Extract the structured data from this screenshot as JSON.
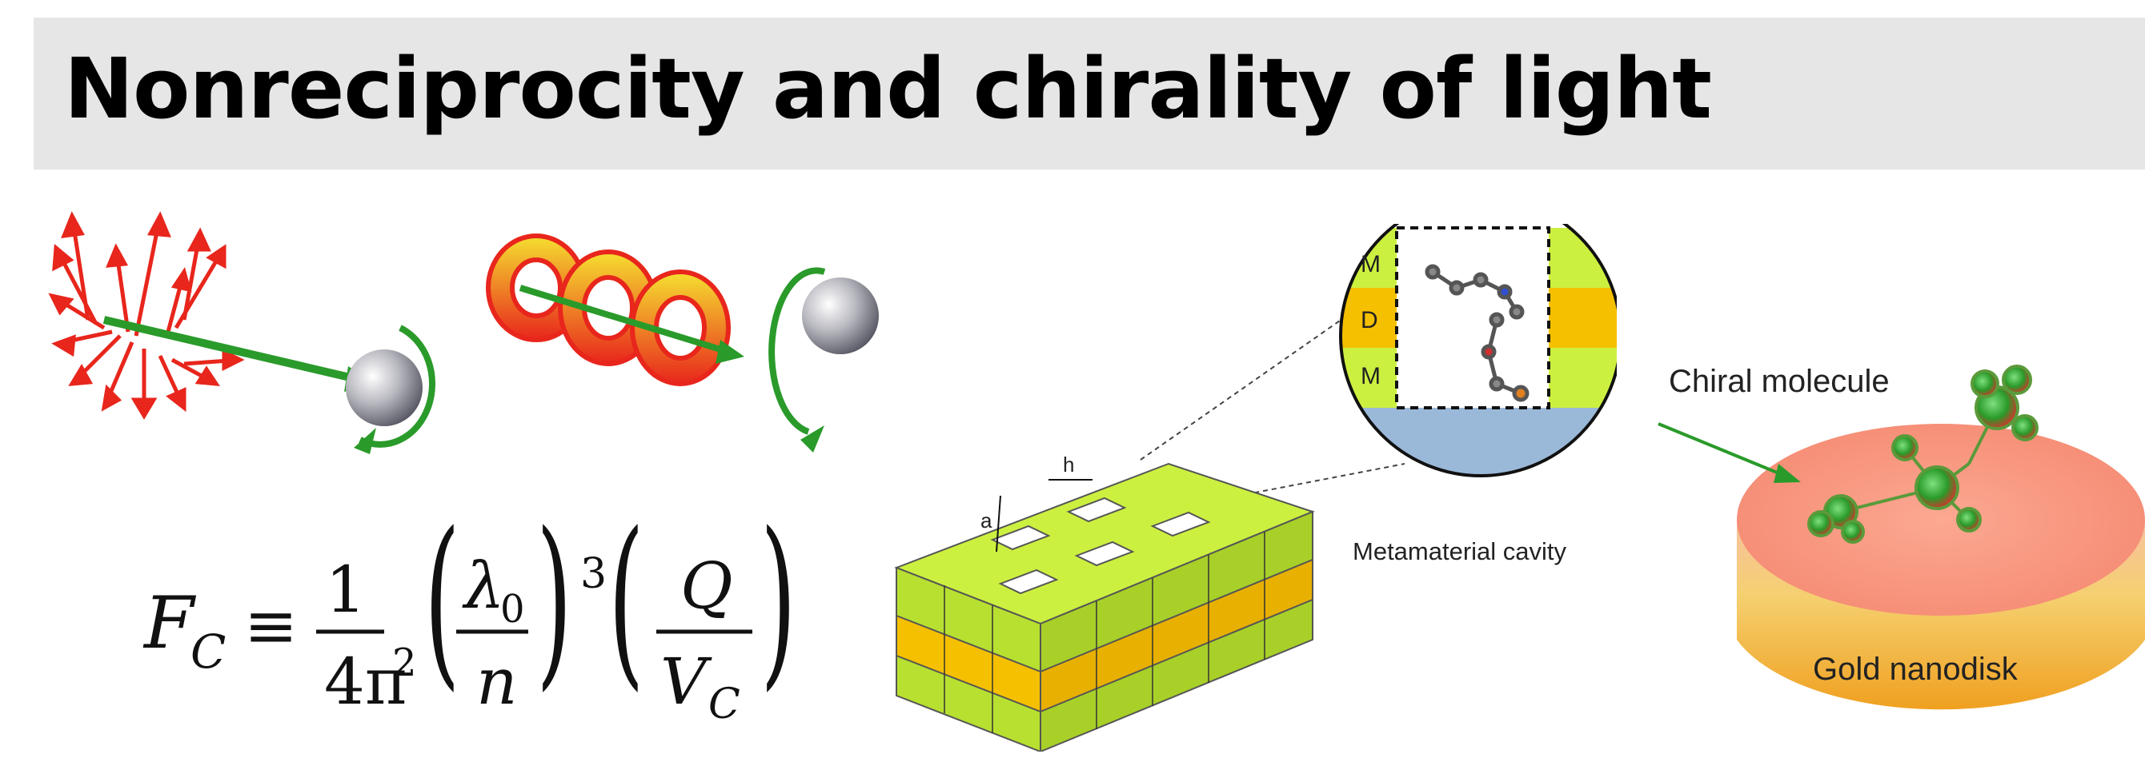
{
  "title": "Nonreciprocity and chirality of light",
  "formula": {
    "lhs": "F",
    "lhs_sub": "C",
    "equiv": "≡",
    "frac1_num": "1",
    "frac1_den": "4π",
    "frac1_den_sup": "2",
    "frac2_num": "λ",
    "frac2_num_sub": "0",
    "frac2_den": "n",
    "power": "3",
    "frac3_num": "Q",
    "frac3_den": "V",
    "frac3_den_sub": "C"
  },
  "metamaterial": {
    "label_h": "h",
    "label_a": "a",
    "layer_m_top": "M",
    "layer_d": "D",
    "layer_m_bottom": "M",
    "caption": "Metamaterial cavity"
  },
  "nanodisk": {
    "molecule_label": "Chiral molecule",
    "disk_label": "Gold nanodisk"
  },
  "colors": {
    "red_arrows": "#e8261c",
    "green_arrow": "#2a9a2a",
    "lime": "#c8f032",
    "orange": "#f5b800",
    "disk_top": "#f89a82"
  }
}
